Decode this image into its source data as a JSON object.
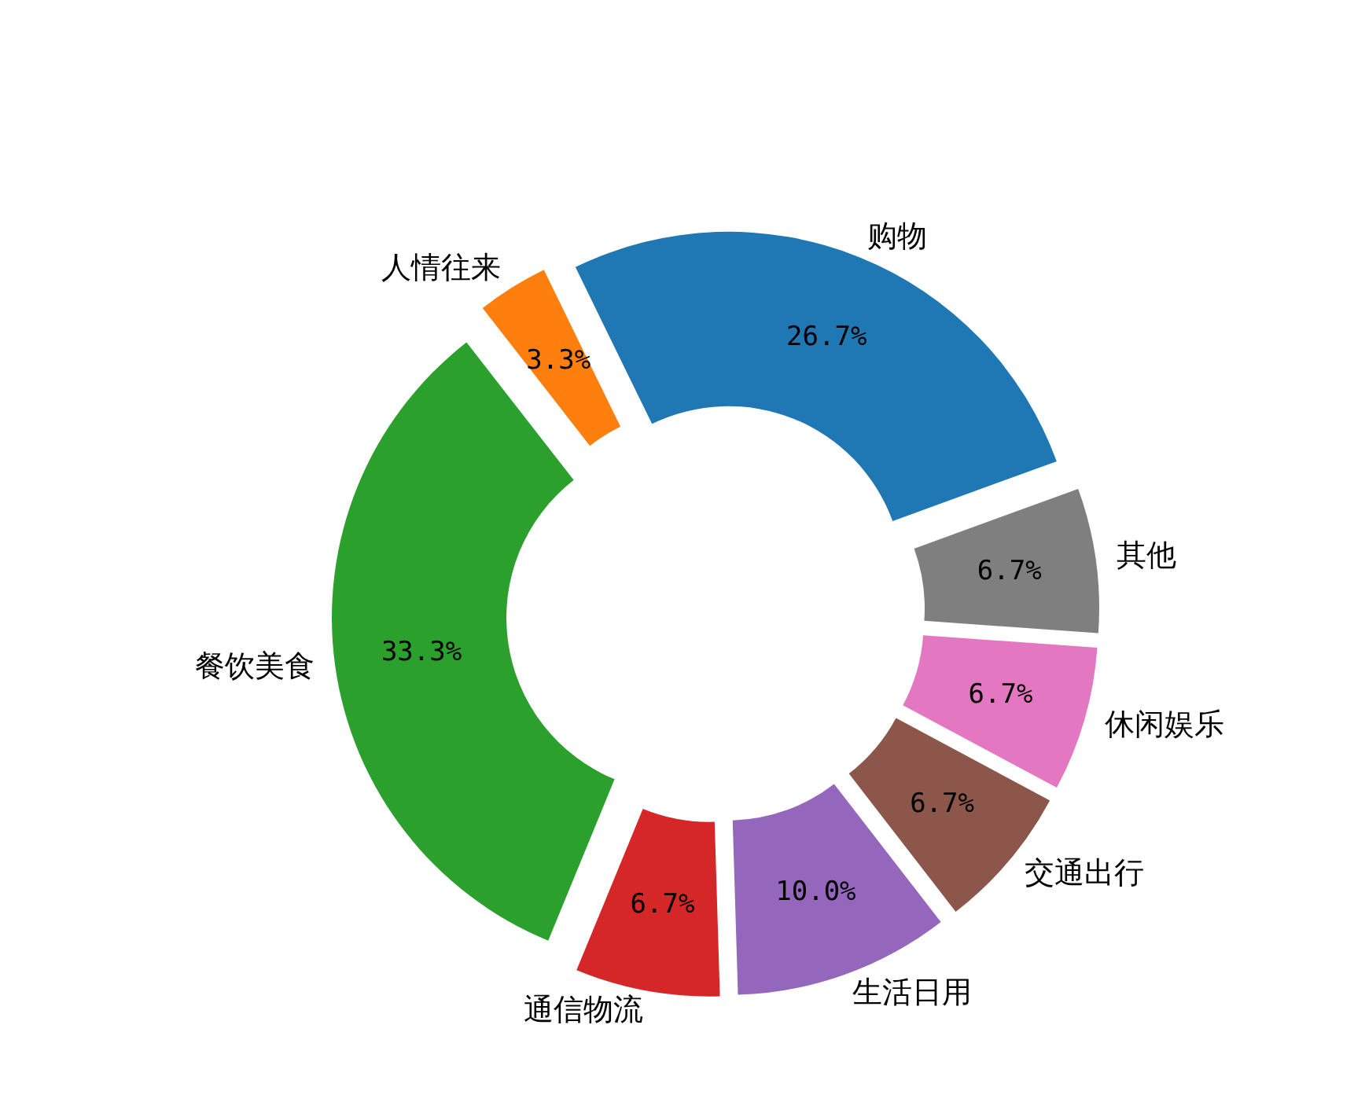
{
  "chart_data": {
    "type": "donut",
    "categories": [
      "购物",
      "人情往来",
      "餐饮美食",
      "通信物流",
      "生活日用",
      "交通出行",
      "休闲娱乐",
      "其他"
    ],
    "values": [
      26.7,
      3.3,
      33.3,
      6.7,
      10.0,
      6.7,
      6.7,
      6.7
    ],
    "value_labels": [
      "26.7%",
      "3.3%",
      "33.3%",
      "6.7%",
      "10.0%",
      "6.7%",
      "6.7%",
      "6.7%"
    ],
    "colors": [
      "#1f77b4",
      "#ff7f0e",
      "#2ca02c",
      "#d62728",
      "#9467bd",
      "#8c564b",
      "#e377c2",
      "#7f7f7f"
    ]
  }
}
